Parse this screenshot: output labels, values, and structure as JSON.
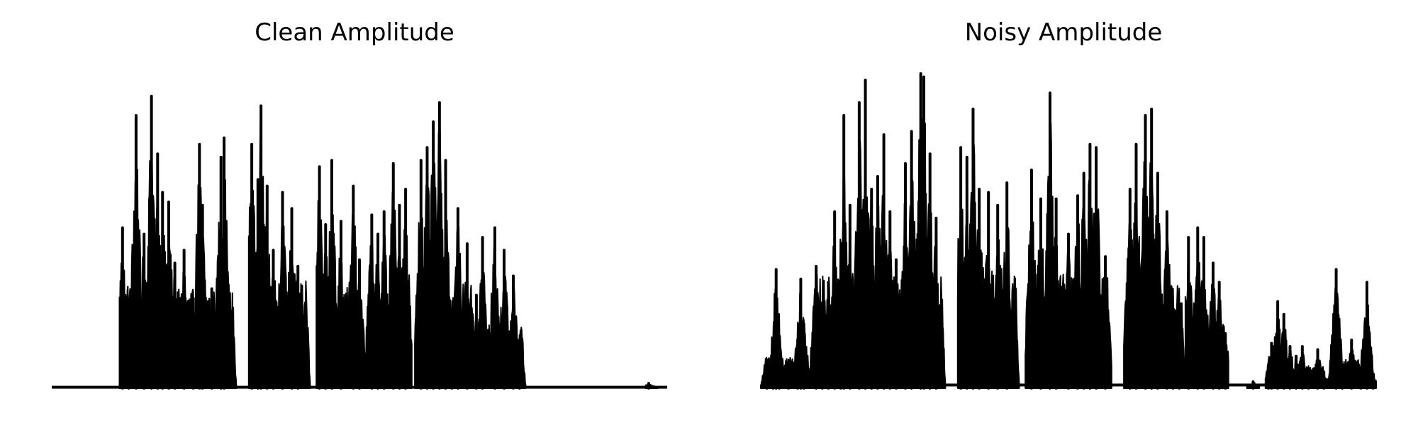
{
  "chart_data": [
    {
      "type": "area",
      "title": "Clean Amplitude",
      "xlabel": "",
      "ylabel": "",
      "axis_visible": false,
      "grid": false,
      "color": "#000000",
      "xlim": [
        0,
        1
      ],
      "ylim": [
        0,
        1
      ],
      "baseline_noise": 0.003,
      "segments": [
        {
          "start": 0.11,
          "end": 0.17,
          "peaks": [
            [
              0.115,
              0.5
            ],
            [
              0.125,
              0.23
            ],
            [
              0.137,
              0.85
            ],
            [
              0.15,
              0.48
            ],
            [
              0.162,
              0.91
            ]
          ]
        },
        {
          "start": 0.17,
          "end": 0.3,
          "peaks": [
            [
              0.172,
              0.73
            ],
            [
              0.18,
              0.61
            ],
            [
              0.19,
              0.58
            ],
            [
              0.2,
              0.39
            ],
            [
              0.215,
              0.43
            ],
            [
              0.23,
              0.28
            ],
            [
              0.24,
              0.76
            ],
            [
              0.245,
              0.57
            ],
            [
              0.26,
              0.31
            ],
            [
              0.275,
              0.72
            ],
            [
              0.28,
              0.78
            ]
          ]
        },
        {
          "start": 0.32,
          "end": 0.42,
          "peaks": [
            [
              0.325,
              0.76
            ],
            [
              0.335,
              0.65
            ],
            [
              0.34,
              0.88
            ],
            [
              0.35,
              0.63
            ],
            [
              0.36,
              0.43
            ],
            [
              0.375,
              0.61
            ],
            [
              0.39,
              0.56
            ],
            [
              0.4,
              0.38
            ]
          ]
        },
        {
          "start": 0.43,
          "end": 0.51,
          "peaks": [
            [
              0.435,
              0.69
            ],
            [
              0.445,
              0.51
            ],
            [
              0.455,
              0.71
            ],
            [
              0.47,
              0.52
            ],
            [
              0.49,
              0.63
            ],
            [
              0.5,
              0.4
            ]
          ]
        },
        {
          "start": 0.51,
          "end": 0.585,
          "peaks": [
            [
              0.52,
              0.54
            ],
            [
              0.53,
              0.48
            ],
            [
              0.54,
              0.55
            ],
            [
              0.555,
              0.7
            ],
            [
              0.565,
              0.57
            ],
            [
              0.575,
              0.62
            ]
          ]
        },
        {
          "start": 0.59,
          "end": 0.69,
          "peaks": [
            [
              0.6,
              0.71
            ],
            [
              0.61,
              0.75
            ],
            [
              0.62,
              0.83
            ],
            [
              0.63,
              0.89
            ],
            [
              0.64,
              0.71
            ],
            [
              0.65,
              0.11
            ],
            [
              0.66,
              0.56
            ],
            [
              0.675,
              0.45
            ],
            [
              0.69,
              0.29
            ]
          ]
        },
        {
          "start": 0.69,
          "end": 0.77,
          "peaks": [
            [
              0.7,
              0.47
            ],
            [
              0.72,
              0.5
            ],
            [
              0.735,
              0.43
            ],
            [
              0.75,
              0.35
            ],
            [
              0.76,
              0.07
            ]
          ]
        },
        {
          "start": 0.965,
          "end": 0.985,
          "peaks": [
            [
              0.97,
              0.015
            ]
          ]
        }
      ]
    },
    {
      "type": "area",
      "title": "Noisy Amplitude",
      "xlabel": "",
      "ylabel": "",
      "axis_visible": false,
      "grid": false,
      "color": "#000000",
      "xlim": [
        0,
        1
      ],
      "ylim": [
        0,
        1
      ],
      "baseline_noise": 0.01,
      "segments": [
        {
          "start": 0.0,
          "end": 0.08,
          "peaks": [
            [
              0.01,
              0.03
            ],
            [
              0.02,
              0.08
            ],
            [
              0.025,
              0.37
            ],
            [
              0.03,
              0.16
            ],
            [
              0.045,
              0.07
            ],
            [
              0.06,
              0.15
            ],
            [
              0.065,
              0.34
            ],
            [
              0.07,
              0.2
            ]
          ]
        },
        {
          "start": 0.08,
          "end": 0.3,
          "peaks": [
            [
              0.09,
              0.38
            ],
            [
              0.1,
              0.2
            ],
            [
              0.11,
              0.33
            ],
            [
              0.12,
              0.55
            ],
            [
              0.13,
              0.34
            ],
            [
              0.135,
              0.85
            ],
            [
              0.145,
              0.57
            ],
            [
              0.16,
              0.89
            ],
            [
              0.17,
              0.96
            ],
            [
              0.18,
              0.62
            ],
            [
              0.19,
              0.66
            ],
            [
              0.2,
              0.79
            ],
            [
              0.21,
              0.55
            ],
            [
              0.22,
              0.4
            ],
            [
              0.235,
              0.7
            ],
            [
              0.245,
              0.8
            ],
            [
              0.26,
              0.98
            ],
            [
              0.265,
              0.97
            ],
            [
              0.275,
              0.73
            ],
            [
              0.285,
              0.53
            ]
          ]
        },
        {
          "start": 0.32,
          "end": 0.42,
          "peaks": [
            [
              0.325,
              0.75
            ],
            [
              0.335,
              0.72
            ],
            [
              0.345,
              0.87
            ],
            [
              0.355,
              0.62
            ],
            [
              0.37,
              0.61
            ],
            [
              0.385,
              0.57
            ],
            [
              0.4,
              0.64
            ]
          ]
        },
        {
          "start": 0.43,
          "end": 0.57,
          "peaks": [
            [
              0.44,
              0.68
            ],
            [
              0.455,
              0.59
            ],
            [
              0.47,
              0.92
            ],
            [
              0.48,
              0.59
            ],
            [
              0.5,
              0.48
            ],
            [
              0.515,
              0.6
            ],
            [
              0.525,
              0.67
            ],
            [
              0.535,
              0.76
            ],
            [
              0.545,
              0.75
            ],
            [
              0.56,
              0.41
            ]
          ]
        },
        {
          "start": 0.59,
          "end": 0.69,
          "peaks": [
            [
              0.6,
              0.62
            ],
            [
              0.61,
              0.76
            ],
            [
              0.625,
              0.85
            ],
            [
              0.635,
              0.87
            ],
            [
              0.645,
              0.67
            ],
            [
              0.66,
              0.55
            ],
            [
              0.67,
              0.18
            ],
            [
              0.68,
              0.2
            ]
          ]
        },
        {
          "start": 0.69,
          "end": 0.76,
          "peaks": [
            [
              0.695,
              0.47
            ],
            [
              0.71,
              0.5
            ],
            [
              0.72,
              0.47
            ],
            [
              0.735,
              0.39
            ],
            [
              0.745,
              0.33
            ],
            [
              0.755,
              0.17
            ]
          ]
        },
        {
          "start": 0.79,
          "end": 0.81,
          "peaks": [
            [
              0.8,
              0.02
            ]
          ]
        },
        {
          "start": 0.82,
          "end": 0.92,
          "peaks": [
            [
              0.825,
              0.05
            ],
            [
              0.83,
              0.14
            ],
            [
              0.84,
              0.27
            ],
            [
              0.85,
              0.23
            ],
            [
              0.86,
              0.13
            ],
            [
              0.87,
              0.1
            ],
            [
              0.88,
              0.13
            ],
            [
              0.89,
              0.05
            ],
            [
              0.905,
              0.12
            ],
            [
              0.915,
              0.05
            ]
          ]
        },
        {
          "start": 0.92,
          "end": 1.0,
          "peaks": [
            [
              0.935,
              0.37
            ],
            [
              0.945,
              0.05
            ],
            [
              0.96,
              0.15
            ],
            [
              0.975,
              0.04
            ],
            [
              0.985,
              0.33
            ],
            [
              0.995,
              0.04
            ]
          ]
        }
      ]
    }
  ]
}
